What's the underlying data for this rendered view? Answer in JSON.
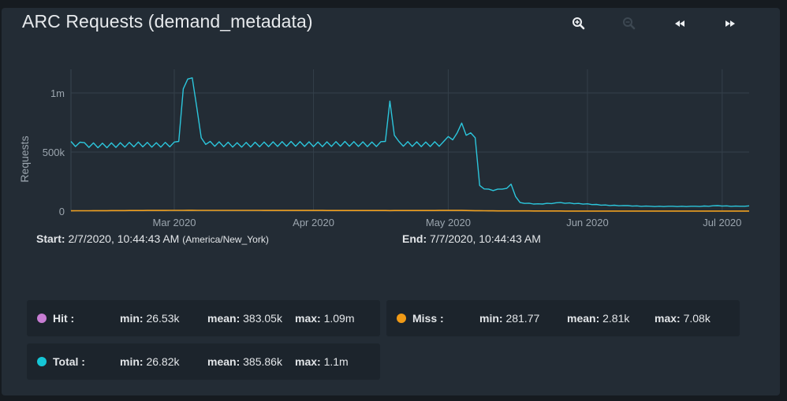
{
  "panel": {
    "title": "ARC Requests (demand_metadata)",
    "toolbar": [
      {
        "name": "zoom-in-button",
        "icon": "zoom-in-icon"
      },
      {
        "name": "zoom-out-button",
        "icon": "zoom-out-icon"
      },
      {
        "name": "pan-left-button",
        "icon": "rewind-icon"
      },
      {
        "name": "pan-right-button",
        "icon": "fast-forward-icon"
      }
    ]
  },
  "chart_data": {
    "type": "line",
    "title": "ARC Requests (demand_metadata)",
    "ylabel": "Requests",
    "xlabel": "",
    "ylim": [
      0,
      1200000
    ],
    "xlim": [
      "2020-02-07",
      "2020-07-07"
    ],
    "yticks": [
      {
        "value": 0,
        "label": "0"
      },
      {
        "value": 500000,
        "label": "500k"
      },
      {
        "value": 1000000,
        "label": "1m"
      }
    ],
    "xticks": [
      {
        "date": "2020-03-01",
        "label": "Mar 2020"
      },
      {
        "date": "2020-04-01",
        "label": "Apr 2020"
      },
      {
        "date": "2020-05-01",
        "label": "May 2020"
      },
      {
        "date": "2020-06-01",
        "label": "Jun 2020"
      },
      {
        "date": "2020-07-01",
        "label": "Jul 2020"
      }
    ],
    "grid": true,
    "series": [
      {
        "name": "Total",
        "color": "#2cc6dc",
        "points": [
          [
            "2020-02-07",
            570000
          ],
          [
            "2020-02-10",
            560000
          ],
          [
            "2020-02-14",
            555000
          ],
          [
            "2020-02-18",
            560000
          ],
          [
            "2020-02-22",
            565000
          ],
          [
            "2020-02-26",
            560000
          ],
          [
            "2020-03-01",
            565000
          ],
          [
            "2020-03-02",
            570000
          ],
          [
            "2020-03-03",
            1000000
          ],
          [
            "2020-03-04",
            1080000
          ],
          [
            "2020-03-05",
            1090000
          ],
          [
            "2020-03-06",
            850000
          ],
          [
            "2020-03-07",
            600000
          ],
          [
            "2020-03-09",
            570000
          ],
          [
            "2020-03-15",
            560000
          ],
          [
            "2020-03-21",
            565000
          ],
          [
            "2020-03-27",
            570000
          ],
          [
            "2020-04-02",
            565000
          ],
          [
            "2020-04-08",
            570000
          ],
          [
            "2020-04-14",
            565000
          ],
          [
            "2020-04-17",
            570000
          ],
          [
            "2020-04-18",
            900000
          ],
          [
            "2020-04-19",
            620000
          ],
          [
            "2020-04-20",
            570000
          ],
          [
            "2020-04-26",
            565000
          ],
          [
            "2020-04-30",
            570000
          ],
          [
            "2020-05-01",
            610000
          ],
          [
            "2020-05-03",
            640000
          ],
          [
            "2020-05-04",
            720000
          ],
          [
            "2020-05-05",
            620000
          ],
          [
            "2020-05-06",
            640000
          ],
          [
            "2020-05-07",
            600000
          ],
          [
            "2020-05-08",
            210000
          ],
          [
            "2020-05-10",
            180000
          ],
          [
            "2020-05-13",
            180000
          ],
          [
            "2020-05-15",
            220000
          ],
          [
            "2020-05-16",
            120000
          ],
          [
            "2020-05-17",
            70000
          ],
          [
            "2020-05-21",
            60000
          ],
          [
            "2020-05-26",
            70000
          ],
          [
            "2020-06-01",
            60000
          ],
          [
            "2020-06-05",
            50000
          ],
          [
            "2020-06-10",
            45000
          ],
          [
            "2020-06-15",
            40000
          ],
          [
            "2020-06-20",
            40000
          ],
          [
            "2020-06-25",
            40000
          ],
          [
            "2020-06-30",
            45000
          ],
          [
            "2020-07-05",
            40000
          ],
          [
            "2020-07-07",
            45000
          ]
        ]
      },
      {
        "name": "Miss",
        "color": "#f0a020",
        "points": [
          [
            "2020-02-07",
            3000
          ],
          [
            "2020-03-04",
            7080
          ],
          [
            "2020-04-18",
            5000
          ],
          [
            "2020-05-04",
            6000
          ],
          [
            "2020-05-10",
            2500
          ],
          [
            "2020-06-01",
            500
          ],
          [
            "2020-07-07",
            400
          ]
        ]
      }
    ]
  },
  "range": {
    "start_label": "Start:",
    "start_value": "2/7/2020, 10:44:43 AM",
    "start_tz": "(America/New_York)",
    "end_label": "End:",
    "end_value": "7/7/2020, 10:44:43 AM"
  },
  "legend": [
    {
      "name": "Hit :",
      "color": "#c77dd3",
      "min_label": "min:",
      "min": "26.53k",
      "mean_label": "mean:",
      "mean": "383.05k",
      "max_label": "max:",
      "max": "1.09m"
    },
    {
      "name": "Miss :",
      "color": "#f09a16",
      "min_label": "min:",
      "min": "281.77",
      "mean_label": "mean:",
      "mean": "2.81k",
      "max_label": "max:",
      "max": "7.08k"
    },
    {
      "name": "Total :",
      "color": "#15c6d6",
      "min_label": "min:",
      "min": "26.82k",
      "mean_label": "mean:",
      "mean": "385.86k",
      "max_label": "max:",
      "max": "1.1m"
    }
  ]
}
